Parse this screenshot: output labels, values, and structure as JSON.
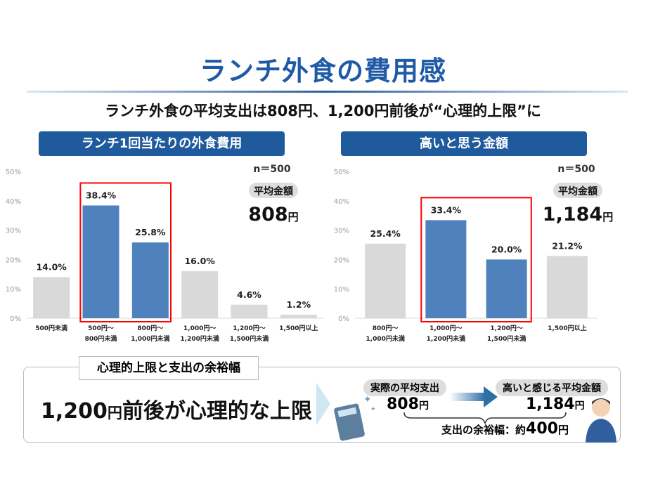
{
  "title": "ランチ外食の費用感",
  "subtitle": "ランチ外食の平均支出は808円、1,200円前後が“心理的上限”に",
  "colors": {
    "highlight": "#4f81bd",
    "other": "#d9d9d9",
    "box": "#ff0000",
    "header": "#1f5a9c"
  },
  "chart_data": [
    {
      "type": "bar",
      "title": "ランチ1回当たりの外食費用",
      "n": "n＝500",
      "avg_label": "平均金額",
      "avg_value": "808",
      "avg_unit": "円",
      "categories": [
        [
          "500円未満"
        ],
        [
          "500円～",
          "800円未満"
        ],
        [
          "800円～",
          "1,000円未満"
        ],
        [
          "1,000円～",
          "1,200円未満"
        ],
        [
          "1,200円～",
          "1,500円未満"
        ],
        [
          "1,500円以上"
        ]
      ],
      "values": [
        14.0,
        38.4,
        25.8,
        16.0,
        4.6,
        1.2
      ],
      "data_labels": [
        "14.0%",
        "38.4%",
        "25.8%",
        "16.0%",
        "4.6%",
        "1.2%"
      ],
      "highlighted": [
        1,
        2
      ],
      "ylim": [
        0,
        50
      ],
      "yticks": [
        "0%",
        "10%",
        "20%",
        "30%",
        "40%",
        "50%"
      ],
      "grid": false
    },
    {
      "type": "bar",
      "title": "高いと思う金額",
      "n": "n＝500",
      "avg_label": "平均金額",
      "avg_value": "1,184",
      "avg_unit": "円",
      "categories": [
        [
          "800円～",
          "1,000円未満"
        ],
        [
          "1,000円～",
          "1,200円未満"
        ],
        [
          "1,200円～",
          "1,500円未満"
        ],
        [
          "1,500円以上"
        ]
      ],
      "values": [
        25.4,
        33.4,
        20.0,
        21.2
      ],
      "data_labels": [
        "25.4%",
        "33.4%",
        "20.0%",
        "21.2%"
      ],
      "highlighted": [
        1,
        2
      ],
      "ylim": [
        0,
        50
      ],
      "yticks": [
        "0%",
        "10%",
        "20%",
        "30%",
        "40%",
        "50%"
      ],
      "grid": false
    }
  ],
  "summary": {
    "label": "心理的上限と支出の余裕幅",
    "main_num": "1,200",
    "main_unit": "円",
    "main_text": "前後が心理的な上限",
    "actual_label": "実際の平均支出",
    "actual_value": "808",
    "high_label": "高いと感じる平均金額",
    "high_value": "1,184",
    "unit": "円",
    "margin_label": "支出の余裕幅：約",
    "margin_value": "400",
    "margin_unit": "円"
  }
}
